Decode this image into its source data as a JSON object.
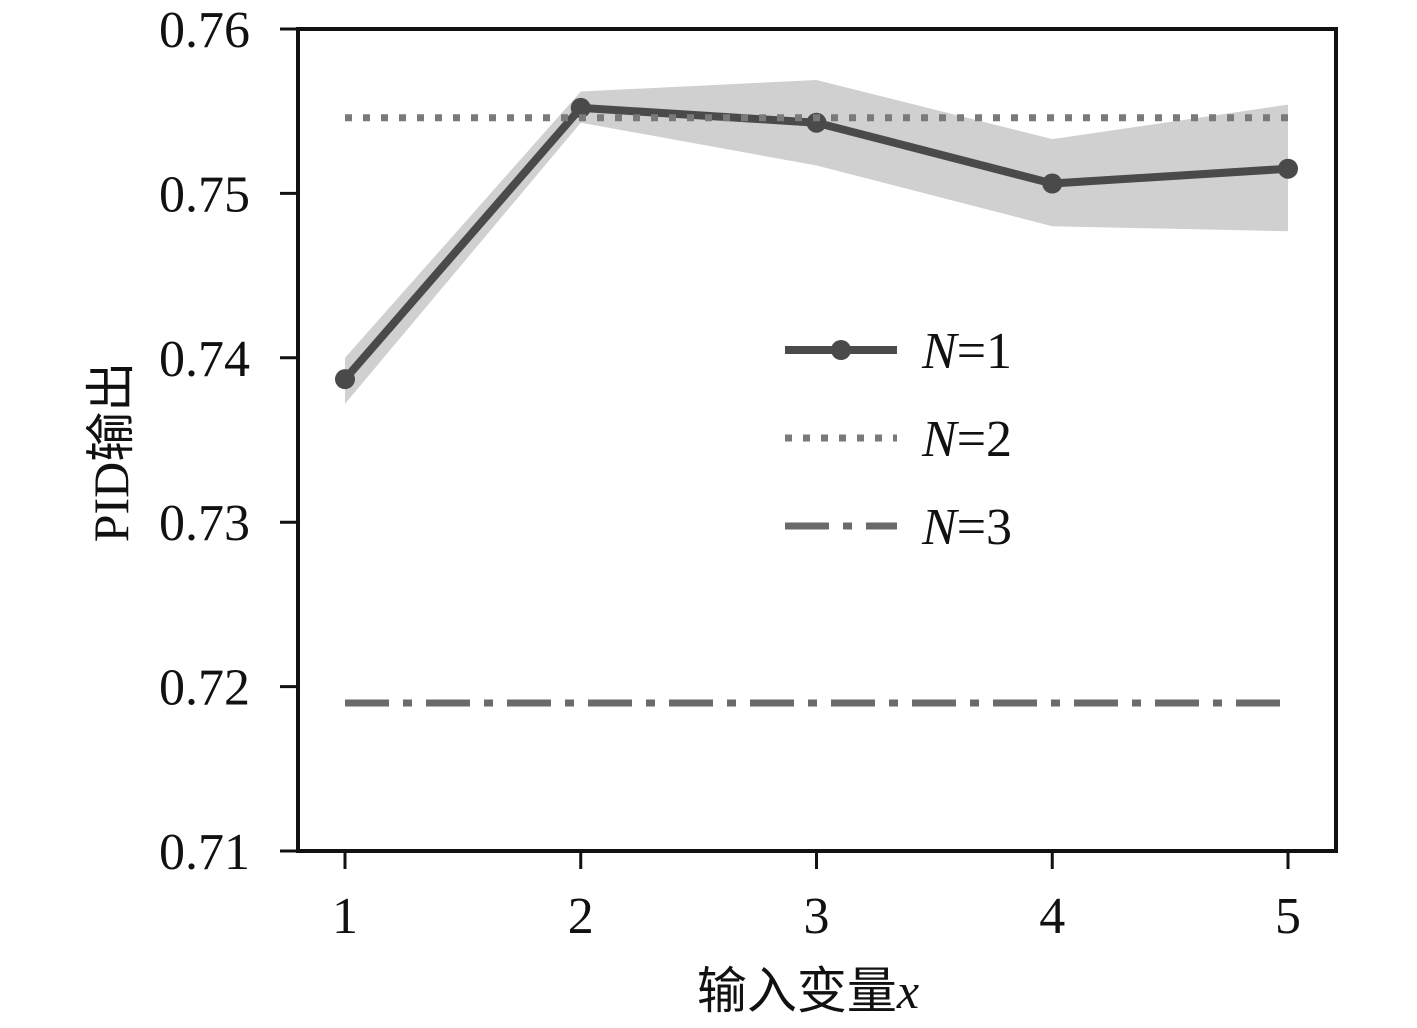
{
  "chart_data": {
    "type": "line",
    "xlabel": "输入变量",
    "xlabel_var": "x",
    "ylabel": "PID输出",
    "x": [
      1,
      2,
      3,
      4,
      5
    ],
    "xticks": [
      "1",
      "2",
      "3",
      "4",
      "5"
    ],
    "ylim": [
      0.71,
      0.76
    ],
    "yticks": [
      "0.71",
      "0.72",
      "0.73",
      "0.74",
      "0.75",
      "0.76"
    ],
    "legend_position": "center-right",
    "grid": false,
    "series": [
      {
        "name_var": "N",
        "name_rest": "=1",
        "style": "solid-marker",
        "color": "#4a4a4a",
        "values": [
          0.7387,
          0.7552,
          0.7543,
          0.7506,
          0.7515
        ],
        "band_upper": [
          0.74,
          0.7562,
          0.7569,
          0.7533,
          0.7554
        ],
        "band_lower": [
          0.7372,
          0.7543,
          0.7517,
          0.748,
          0.7477
        ],
        "band_color": "#d0d0d0"
      },
      {
        "name_var": "N",
        "name_rest": "=2",
        "style": "dotted",
        "color": "#7a7a7a",
        "values": [
          0.7546,
          0.7546,
          0.7546,
          0.7546,
          0.7546
        ]
      },
      {
        "name_var": "N",
        "name_rest": "=3",
        "style": "dashdot",
        "color": "#6a6a6a",
        "values": [
          0.719,
          0.719,
          0.719,
          0.719,
          0.719
        ]
      }
    ]
  }
}
